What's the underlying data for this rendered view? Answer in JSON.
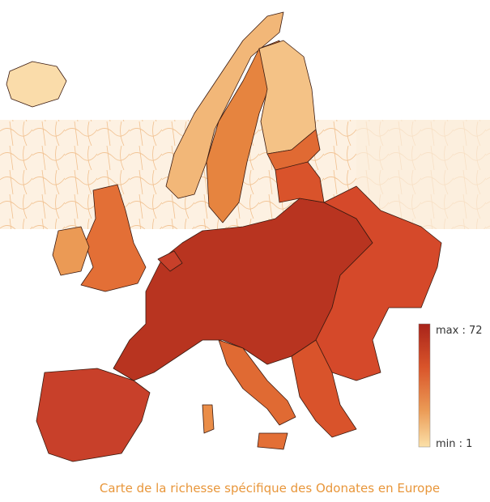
{
  "legend": {
    "max_label": "max : 72",
    "min_label": "min : 1"
  },
  "caption": "Carte de la richesse spécifique des Odonates en Europe"
}
